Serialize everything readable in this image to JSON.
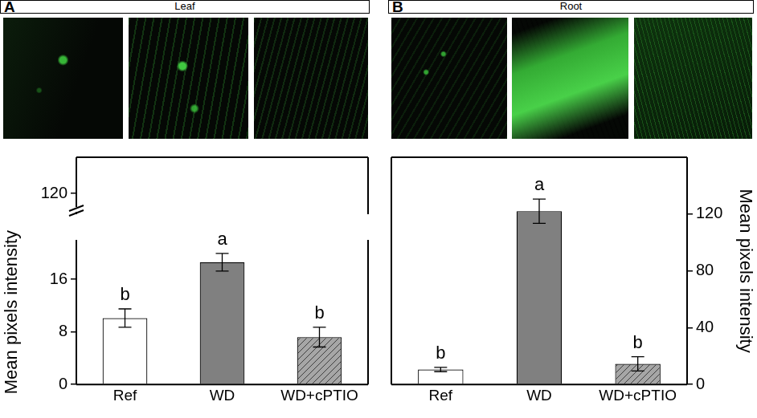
{
  "chart_data": [
    {
      "panel": "A",
      "title": "Leaf",
      "type": "bar",
      "categories": [
        "Ref",
        "WD",
        "WD+cPTIO"
      ],
      "values": [
        10.1,
        18.6,
        7.2
      ],
      "errors": [
        1.4,
        1.35,
        1.5
      ],
      "letters": [
        "b",
        "a",
        "b"
      ],
      "colors": [
        "#ffffff",
        "#808080",
        "#a6a6a6"
      ],
      "y_label": "Mean pixels intensity",
      "ylim": [
        0,
        22
      ],
      "yticks": [
        0,
        8,
        16
      ],
      "y2lim": [
        116,
        127
      ],
      "y2ticks": [
        120
      ],
      "grid": false
    },
    {
      "panel": "B",
      "title": "Root",
      "type": "bar",
      "categories": [
        "Ref",
        "WD",
        "WD+cPTIO"
      ],
      "values": [
        10.5,
        122,
        14.5
      ],
      "errors": [
        1.5,
        8.5,
        5
      ],
      "letters": [
        "b",
        "a",
        "b"
      ],
      "colors": [
        "#ffffff",
        "#808080",
        "#a6a6a6"
      ],
      "y_label": "Mean pixels intensity",
      "ylim": [
        0,
        160
      ],
      "yticks": [
        0,
        40,
        80,
        120
      ],
      "grid": false
    }
  ]
}
